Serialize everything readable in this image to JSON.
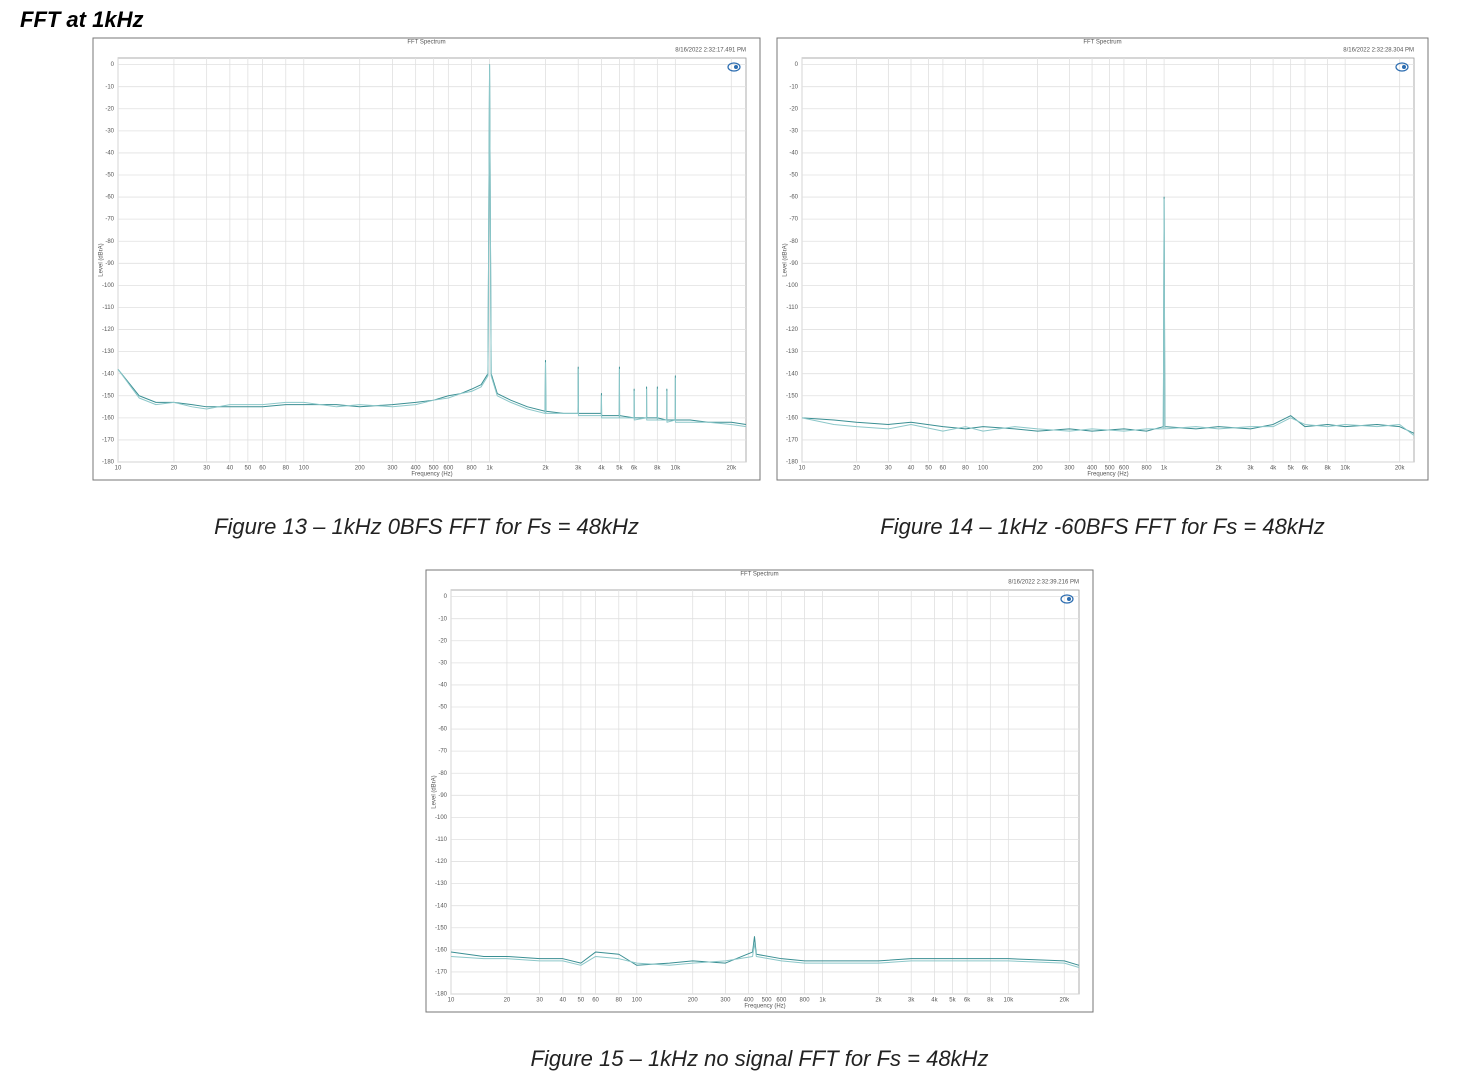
{
  "heading": "FFT at 1kHz",
  "chart_data": [
    {
      "type": "line",
      "title": "FFT Spectrum",
      "timestamp": "8/16/2022 2:32:17.491 PM",
      "caption": "Figure 13 – 1kHz 0BFS FFT for Fs = 48kHz",
      "x_label": "Frequency (Hz)",
      "y_label": "Level (dBrA)",
      "xscale": "log",
      "grid": true,
      "xlim": [
        10,
        24000
      ],
      "ylim": [
        -180,
        3
      ],
      "xticks": [
        10,
        20,
        30,
        40,
        50,
        60,
        80,
        100,
        200,
        300,
        400,
        500,
        600,
        800,
        {
          "value": 1000,
          "label": "1k"
        },
        {
          "value": 2000,
          "label": "2k"
        },
        {
          "value": 3000,
          "label": "3k"
        },
        {
          "value": 4000,
          "label": "4k"
        },
        {
          "value": 5000,
          "label": "5k"
        },
        {
          "value": 6000,
          "label": "6k"
        },
        {
          "value": 8000,
          "label": "8k"
        },
        {
          "value": 10000,
          "label": "10k"
        },
        {
          "value": 20000,
          "label": "20k"
        }
      ],
      "yticks": [
        0,
        -10,
        -20,
        -30,
        -40,
        -50,
        -60,
        -70,
        -80,
        -90,
        -100,
        -110,
        -120,
        -130,
        -140,
        -150,
        -160,
        -170,
        -180
      ],
      "x": [
        10,
        13,
        16,
        20,
        25,
        30,
        40,
        50,
        60,
        80,
        100,
        150,
        200,
        300,
        400,
        500,
        600,
        700,
        800,
        900,
        980,
        1000,
        1020,
        1100,
        1300,
        1600,
        1990,
        2000,
        2010,
        2500,
        2990,
        3000,
        3010,
        3990,
        4000,
        4010,
        4990,
        5000,
        5010,
        5990,
        6000,
        6010,
        6990,
        7000,
        7010,
        7990,
        8000,
        8010,
        8990,
        9000,
        9010,
        9990,
        10000,
        10010,
        12000,
        15000,
        20000,
        24000
      ],
      "series": [
        {
          "color": "#3a8f93",
          "values": [
            -138,
            -150,
            -153,
            -153,
            -154,
            -155,
            -155,
            -155,
            -155,
            -154,
            -154,
            -154,
            -155,
            -154,
            -153,
            -152,
            -150,
            -149,
            -147,
            -145,
            -140,
            0,
            -140,
            -149,
            -152,
            -155,
            -157,
            -134,
            -157,
            -158,
            -158,
            -137,
            -158,
            -158,
            -149,
            -159,
            -159,
            -137,
            -159,
            -160,
            -147,
            -160,
            -160,
            -146,
            -160,
            -160,
            -146,
            -160,
            -161,
            -147,
            -161,
            -161,
            -141,
            -161,
            -161,
            -162,
            -162,
            -163
          ]
        },
        {
          "color": "#8cc7c9",
          "values": [
            -138,
            -151,
            -154,
            -153,
            -155,
            -156,
            -154,
            -154,
            -154,
            -153,
            -153,
            -155,
            -154,
            -155,
            -154,
            -152,
            -151,
            -149,
            -148,
            -146,
            -141,
            0,
            -141,
            -150,
            -153,
            -156,
            -158,
            -135,
            -158,
            -158,
            -158,
            -138,
            -159,
            -159,
            -150,
            -160,
            -160,
            -138,
            -160,
            -160,
            -148,
            -161,
            -160,
            -147,
            -161,
            -161,
            -147,
            -161,
            -161,
            -148,
            -162,
            -161,
            -142,
            -162,
            -162,
            -162,
            -163,
            -164
          ]
        }
      ]
    },
    {
      "type": "line",
      "title": "FFT Spectrum",
      "timestamp": "8/16/2022 2:32:28.304 PM",
      "caption": "Figure 14 – 1kHz -60BFS FFT for Fs = 48kHz",
      "x_label": "Frequency (Hz)",
      "y_label": "Level (dBrA)",
      "xscale": "log",
      "grid": true,
      "xlim": [
        10,
        24000
      ],
      "ylim": [
        -180,
        3
      ],
      "xticks": [
        10,
        20,
        30,
        40,
        50,
        60,
        80,
        100,
        200,
        300,
        400,
        500,
        600,
        800,
        {
          "value": 1000,
          "label": "1k"
        },
        {
          "value": 2000,
          "label": "2k"
        },
        {
          "value": 3000,
          "label": "3k"
        },
        {
          "value": 4000,
          "label": "4k"
        },
        {
          "value": 5000,
          "label": "5k"
        },
        {
          "value": 6000,
          "label": "6k"
        },
        {
          "value": 8000,
          "label": "8k"
        },
        {
          "value": 10000,
          "label": "10k"
        },
        {
          "value": 20000,
          "label": "20k"
        }
      ],
      "yticks": [
        0,
        -10,
        -20,
        -30,
        -40,
        -50,
        -60,
        -70,
        -80,
        -90,
        -100,
        -110,
        -120,
        -130,
        -140,
        -150,
        -160,
        -170,
        -180
      ],
      "x": [
        10,
        15,
        20,
        30,
        40,
        60,
        80,
        100,
        150,
        200,
        300,
        400,
        600,
        800,
        990,
        1000,
        1010,
        1500,
        2000,
        3000,
        4000,
        5000,
        6000,
        8000,
        10000,
        15000,
        20000,
        24000
      ],
      "series": [
        {
          "color": "#3a8f93",
          "values": [
            -160,
            -161,
            -162,
            -163,
            -162,
            -164,
            -165,
            -164,
            -165,
            -166,
            -165,
            -166,
            -165,
            -166,
            -164,
            -60,
            -164,
            -165,
            -164,
            -165,
            -163,
            -159,
            -164,
            -163,
            -164,
            -163,
            -164,
            -167
          ]
        },
        {
          "color": "#8cc7c9",
          "values": [
            -160,
            -163,
            -164,
            -165,
            -163,
            -166,
            -164,
            -166,
            -164,
            -165,
            -166,
            -165,
            -166,
            -165,
            -165,
            -61,
            -165,
            -164,
            -165,
            -164,
            -164,
            -160,
            -163,
            -164,
            -163,
            -164,
            -163,
            -168
          ]
        }
      ]
    },
    {
      "type": "line",
      "title": "FFT Spectrum",
      "timestamp": "8/16/2022 2:32:39.216 PM",
      "caption": "Figure 15 – 1kHz no signal FFT for Fs = 48kHz",
      "x_label": "Frequency (Hz)",
      "y_label": "Level (dBrA)",
      "xscale": "log",
      "grid": true,
      "xlim": [
        10,
        24000
      ],
      "ylim": [
        -180,
        3
      ],
      "xticks": [
        10,
        20,
        30,
        40,
        50,
        60,
        80,
        100,
        200,
        300,
        400,
        500,
        600,
        800,
        {
          "value": 1000,
          "label": "1k"
        },
        {
          "value": 2000,
          "label": "2k"
        },
        {
          "value": 3000,
          "label": "3k"
        },
        {
          "value": 4000,
          "label": "4k"
        },
        {
          "value": 5000,
          "label": "5k"
        },
        {
          "value": 6000,
          "label": "6k"
        },
        {
          "value": 8000,
          "label": "8k"
        },
        {
          "value": 10000,
          "label": "10k"
        },
        {
          "value": 20000,
          "label": "20k"
        }
      ],
      "yticks": [
        0,
        -10,
        -20,
        -30,
        -40,
        -50,
        -60,
        -70,
        -80,
        -90,
        -100,
        -110,
        -120,
        -130,
        -140,
        -150,
        -160,
        -170,
        -180
      ],
      "x": [
        10,
        15,
        20,
        30,
        40,
        50,
        60,
        80,
        100,
        150,
        200,
        300,
        420,
        430,
        440,
        600,
        800,
        1000,
        2000,
        3000,
        5000,
        10000,
        20000,
        24000
      ],
      "series": [
        {
          "color": "#3a8f93",
          "values": [
            -161,
            -163,
            -163,
            -164,
            -164,
            -166,
            -161,
            -162,
            -167,
            -166,
            -165,
            -166,
            -161,
            -154,
            -162,
            -164,
            -165,
            -165,
            -165,
            -164,
            -164,
            -164,
            -165,
            -167
          ]
        },
        {
          "color": "#8cc7c9",
          "values": [
            -163,
            -164,
            -164,
            -165,
            -165,
            -167,
            -163,
            -164,
            -166,
            -167,
            -166,
            -165,
            -163,
            -157,
            -163,
            -165,
            -166,
            -166,
            -166,
            -165,
            -165,
            -165,
            -166,
            -168
          ]
        }
      ]
    }
  ]
}
